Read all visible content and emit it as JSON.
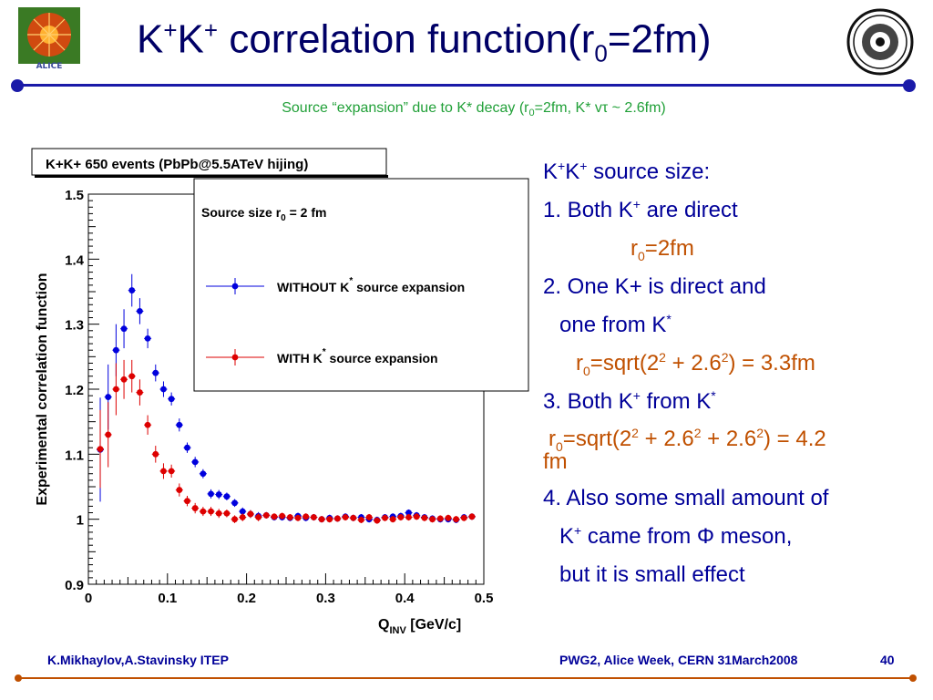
{
  "header": {
    "title_k": "K",
    "title_plus": "+",
    "title_k2": "K",
    "title_plus2": "+",
    "title_mid": " correlation function(r",
    "title_sub": "0",
    "title_end": "=2fm)",
    "logo_left_text": "ALICE",
    "subtitle_pre": "Source “expansion” due to K* decay (r",
    "subtitle_sub": "0",
    "subtitle_post": "=2fm, K* vτ ~ 2.6fm)"
  },
  "plot_box_title": "K+K+ 650 events (PbPb@5.5ATeV hijing)",
  "legend": {
    "header": "Source size r0 = 2 fm",
    "entry1": "WITHOUT K* source expansion",
    "entry2": "WITH K* source expansion"
  },
  "right": {
    "l1a": "K",
    "l1b": "+",
    "l1c": "K",
    "l1d": "+",
    "l1e": " source size:",
    "l2a": "1. Both K",
    "l2b": "+",
    "l2c": " are direct",
    "l3a": "r",
    "l3b": "0",
    "l3c": "=2fm",
    "l4": "2. One K+ is direct and",
    "l5a": "one from K",
    "l5b": "*",
    "l6a": "r",
    "l6b": "0",
    "l6c": "=sqrt(2",
    "l6d": "2",
    "l6e": " + 2.6",
    "l6f": "2",
    "l6g": ") = 3.3fm",
    "l7a": "3. Both K",
    "l7b": "+",
    "l7c": " from K",
    "l7d": "*",
    "l8a": "r",
    "l8b": "0",
    "l8c": "=sqrt(2",
    "l8d": "2",
    "l8e": " + 2.6",
    "l8f": "2",
    "l8g": " + 2.6",
    "l8h": "2",
    "l8i": ") = 4.2",
    "l9": "fm",
    "l10": "4. Also some small amount of",
    "l11a": "K",
    "l11b": "+",
    "l11c": " came from Φ meson,",
    "l12": "but it is small effect"
  },
  "footer": {
    "left": "K.Mikhaylov,A.Stavinsky ITEP",
    "center": "PWG2, Alice Week, CERN 31March2008",
    "page": "40"
  },
  "colors": {
    "title": "#000066",
    "accent": "#1a1aa8",
    "orange": "#c05000",
    "green": "#21a038",
    "blue": "#0000dd",
    "red": "#dd0000"
  },
  "chart_data": {
    "type": "scatter",
    "xlabel": "Q_INV [GeV/c]",
    "ylabel": "Experimental correlation function",
    "xlim": [
      0,
      0.5
    ],
    "ylim": [
      0.9,
      1.5
    ],
    "x_ticks": [
      "0",
      "0.1",
      "0.2",
      "0.3",
      "0.4",
      "0.5"
    ],
    "y_ticks": [
      "0.9",
      "1",
      "1.1",
      "1.2",
      "1.3",
      "1.4",
      "1.5"
    ],
    "series": [
      {
        "name": "WITHOUT K* source expansion",
        "color": "#0000dd",
        "points": [
          [
            0.015,
            1.107,
            0.08
          ],
          [
            0.025,
            1.188,
            0.05
          ],
          [
            0.035,
            1.26,
            0.04
          ],
          [
            0.045,
            1.293,
            0.03
          ],
          [
            0.055,
            1.352,
            0.025
          ],
          [
            0.065,
            1.32,
            0.02
          ],
          [
            0.075,
            1.278,
            0.015
          ],
          [
            0.085,
            1.225,
            0.013
          ],
          [
            0.095,
            1.2,
            0.012
          ],
          [
            0.105,
            1.185,
            0.01
          ],
          [
            0.115,
            1.145,
            0.01
          ],
          [
            0.125,
            1.11,
            0.008
          ],
          [
            0.135,
            1.088,
            0.008
          ],
          [
            0.145,
            1.07,
            0.007
          ],
          [
            0.155,
            1.039,
            0.007
          ],
          [
            0.165,
            1.038,
            0.007
          ],
          [
            0.175,
            1.035,
            0.006
          ],
          [
            0.185,
            1.025,
            0.006
          ],
          [
            0.195,
            1.012,
            0.006
          ],
          [
            0.205,
            1.008,
            0.006
          ],
          [
            0.215,
            1.005,
            0.006
          ],
          [
            0.225,
            1.006,
            0.005
          ],
          [
            0.235,
            1.003,
            0.005
          ],
          [
            0.245,
            1.003,
            0.005
          ],
          [
            0.255,
            1.002,
            0.005
          ],
          [
            0.265,
            1.005,
            0.005
          ],
          [
            0.275,
            1.002,
            0.005
          ],
          [
            0.285,
            1.003,
            0.005
          ],
          [
            0.295,
            1.0,
            0.005
          ],
          [
            0.305,
            1.002,
            0.005
          ],
          [
            0.315,
            1.001,
            0.005
          ],
          [
            0.325,
            1.004,
            0.005
          ],
          [
            0.335,
            1.002,
            0.005
          ],
          [
            0.345,
            1.003,
            0.005
          ],
          [
            0.355,
            1.0,
            0.005
          ],
          [
            0.365,
            0.999,
            0.005
          ],
          [
            0.375,
            1.003,
            0.005
          ],
          [
            0.385,
            1.004,
            0.005
          ],
          [
            0.395,
            1.005,
            0.005
          ],
          [
            0.405,
            1.01,
            0.005
          ],
          [
            0.415,
            1.006,
            0.005
          ],
          [
            0.425,
            1.003,
            0.005
          ],
          [
            0.435,
            1.001,
            0.005
          ],
          [
            0.445,
            1.0,
            0.005
          ],
          [
            0.455,
            1.0,
            0.005
          ],
          [
            0.465,
            0.999,
            0.005
          ],
          [
            0.475,
            1.003,
            0.005
          ],
          [
            0.485,
            1.004,
            0.005
          ]
        ]
      },
      {
        "name": "WITH K* source expansion",
        "color": "#dd0000",
        "points": [
          [
            0.015,
            1.108,
            0.06
          ],
          [
            0.025,
            1.13,
            0.05
          ],
          [
            0.035,
            1.2,
            0.04
          ],
          [
            0.045,
            1.215,
            0.03
          ],
          [
            0.055,
            1.22,
            0.025
          ],
          [
            0.065,
            1.195,
            0.02
          ],
          [
            0.075,
            1.145,
            0.015
          ],
          [
            0.085,
            1.1,
            0.013
          ],
          [
            0.095,
            1.074,
            0.012
          ],
          [
            0.105,
            1.074,
            0.01
          ],
          [
            0.115,
            1.045,
            0.01
          ],
          [
            0.125,
            1.028,
            0.008
          ],
          [
            0.135,
            1.017,
            0.008
          ],
          [
            0.145,
            1.012,
            0.007
          ],
          [
            0.155,
            1.012,
            0.007
          ],
          [
            0.165,
            1.009,
            0.007
          ],
          [
            0.175,
            1.009,
            0.006
          ],
          [
            0.185,
            1.0,
            0.006
          ],
          [
            0.195,
            1.003,
            0.006
          ],
          [
            0.205,
            1.008,
            0.006
          ],
          [
            0.215,
            1.003,
            0.006
          ],
          [
            0.225,
            1.006,
            0.005
          ],
          [
            0.235,
            1.004,
            0.005
          ],
          [
            0.245,
            1.005,
            0.005
          ],
          [
            0.255,
            1.003,
            0.005
          ],
          [
            0.265,
            1.002,
            0.005
          ],
          [
            0.275,
            1.004,
            0.005
          ],
          [
            0.285,
            1.003,
            0.005
          ],
          [
            0.295,
            1.0,
            0.005
          ],
          [
            0.305,
            1.0,
            0.005
          ],
          [
            0.315,
            1.001,
            0.005
          ],
          [
            0.325,
            1.003,
            0.005
          ],
          [
            0.335,
            1.002,
            0.005
          ],
          [
            0.345,
            0.999,
            0.005
          ],
          [
            0.355,
            1.003,
            0.005
          ],
          [
            0.365,
            0.998,
            0.005
          ],
          [
            0.375,
            1.002,
            0.005
          ],
          [
            0.385,
            1.0,
            0.005
          ],
          [
            0.395,
            1.003,
            0.005
          ],
          [
            0.405,
            1.003,
            0.005
          ],
          [
            0.415,
            1.004,
            0.005
          ],
          [
            0.425,
            1.002,
            0.005
          ],
          [
            0.435,
            1.0,
            0.005
          ],
          [
            0.445,
            1.001,
            0.005
          ],
          [
            0.455,
            1.002,
            0.005
          ],
          [
            0.465,
            1.0,
            0.005
          ],
          [
            0.475,
            1.002,
            0.005
          ],
          [
            0.485,
            1.004,
            0.005
          ]
        ]
      }
    ]
  }
}
